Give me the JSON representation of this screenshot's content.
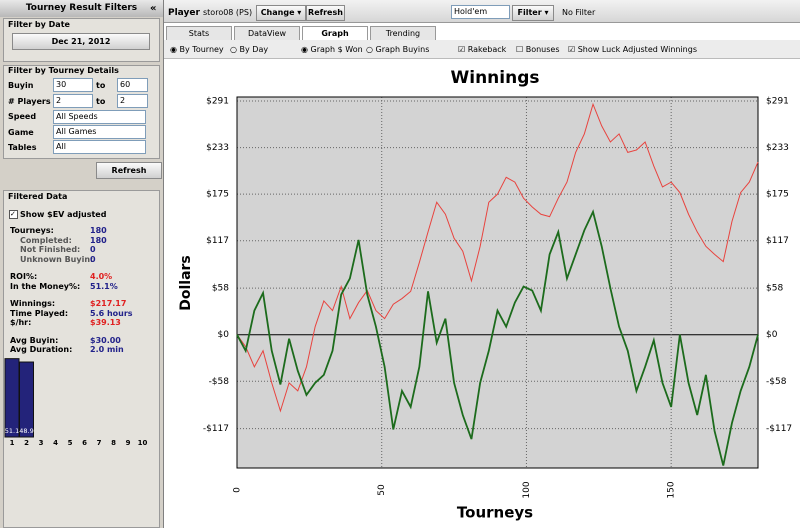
{
  "sidebar": {
    "title": "Tourney Result Filters",
    "collapse": "«",
    "date_section": {
      "title": "Filter by Date",
      "date": "Dec 21, 2012"
    },
    "details": {
      "title": "Filter by Tourney Details",
      "buyin_label": "Buyin",
      "buyin_min": "30",
      "to": "to",
      "buyin_max": "60",
      "players_label": "# Players",
      "players_min": "2",
      "players_max": "2",
      "speed_label": "Speed",
      "speed": "All Speeds",
      "game_label": "Game",
      "game": "All Games",
      "tables_label": "Tables",
      "tables": "All",
      "refresh": "Refresh"
    },
    "filtered": {
      "title": "Filtered Data",
      "ev_adjusted": "Show $EV adjusted",
      "stats": [
        {
          "label": "Tourneys:",
          "value": "180"
        },
        {
          "label": "Completed:",
          "value": "180"
        },
        {
          "label": "Not Finished:",
          "value": "0"
        },
        {
          "label": "Unknown Buyin:",
          "value": "0"
        },
        {
          "label": "ROI%:",
          "value": "4.0%"
        },
        {
          "label": "In the Money%:",
          "value": "51.1%"
        },
        {
          "label": "Winnings:",
          "value": "$217.17"
        },
        {
          "label": "Time Played:",
          "value": "5.6 hours"
        },
        {
          "label": "$/hr:",
          "value": "$39.13"
        },
        {
          "label": "Avg Buyin:",
          "value": "$30.00"
        },
        {
          "label": "Avg Duration:",
          "value": "2.0 min"
        }
      ]
    },
    "itm_chart": {
      "categories": [
        "1",
        "2",
        "3",
        "4",
        "5",
        "6",
        "7",
        "8",
        "9",
        "10"
      ],
      "values": [
        51.1,
        48.9,
        null,
        null,
        null,
        null,
        null,
        null,
        null,
        null
      ],
      "ylim": [
        0,
        60
      ],
      "color": "#23237a"
    }
  },
  "toolbar": {
    "player_label": "Player",
    "player": "storo08 (PS)",
    "change": "Change",
    "refresh": "Refresh",
    "game": "Hold'em",
    "filter": "Filter",
    "filter_status": "No Filter"
  },
  "tabs": {
    "items": [
      "Stats",
      "DataView",
      "Graph",
      "Trending"
    ],
    "active": 2
  },
  "options": {
    "by_tourney": "By Tourney",
    "by_day": "By Day",
    "graph_won": "Graph $ Won",
    "graph_buyins": "Graph Buyins",
    "rakeback": "Rakeback",
    "bonuses": "Bonuses",
    "luck_adjusted": "Show Luck Adjusted Winnings"
  },
  "chart_data": {
    "type": "line",
    "title": "Winnings",
    "x_label": "Tourneys",
    "y_label": "Dollars",
    "x": [
      0,
      3,
      6,
      9,
      12,
      15,
      18,
      21,
      24,
      27,
      30,
      33,
      36,
      39,
      42,
      45,
      48,
      51,
      54,
      57,
      60,
      63,
      66,
      69,
      72,
      75,
      78,
      81,
      84,
      87,
      90,
      93,
      96,
      99,
      102,
      105,
      108,
      111,
      114,
      117,
      120,
      123,
      126,
      129,
      132,
      135,
      138,
      141,
      144,
      147,
      150,
      153,
      156,
      159,
      162,
      165,
      168,
      171,
      174,
      177,
      180
    ],
    "xlim": [
      0,
      180
    ],
    "xticks": [
      0,
      50,
      100,
      150
    ],
    "ylim": [
      -166,
      296
    ],
    "yticks": [
      {
        "value": 291,
        "label": "$291"
      },
      {
        "value": 233,
        "label": "$233"
      },
      {
        "value": 175,
        "label": "$175"
      },
      {
        "value": 117,
        "label": "$117"
      },
      {
        "value": 58,
        "label": "$58"
      },
      {
        "value": 0,
        "label": "$0"
      },
      {
        "value": -58,
        "label": "-$58"
      },
      {
        "value": -117,
        "label": "-$117"
      }
    ],
    "grid": true,
    "series": [
      {
        "color": "#e8433e",
        "values": [
          0,
          -15,
          -40,
          -20,
          -60,
          -95,
          -60,
          -70,
          -40,
          10,
          42,
          30,
          60,
          20,
          40,
          55,
          30,
          20,
          38,
          45,
          54,
          90,
          128,
          165,
          150,
          120,
          104,
          67,
          110,
          165,
          175,
          196,
          190,
          170,
          159,
          150,
          147,
          170,
          190,
          227,
          250,
          287,
          260,
          240,
          250,
          227,
          230,
          240,
          210,
          184,
          190,
          177,
          150,
          128,
          110,
          100,
          91,
          141,
          177,
          190,
          215
        ]
      },
      {
        "color": "#1c6b1c",
        "values": [
          0,
          -20,
          30,
          52,
          -20,
          -62,
          -5,
          -45,
          -75,
          -60,
          -50,
          -20,
          50,
          70,
          118,
          50,
          10,
          -40,
          -118,
          -70,
          -90,
          -40,
          54,
          -10,
          20,
          -60,
          -100,
          -130,
          -60,
          -20,
          30,
          10,
          40,
          60,
          55,
          30,
          100,
          128,
          70,
          100,
          130,
          153,
          110,
          58,
          10,
          -20,
          -70,
          -40,
          -7,
          -60,
          -90,
          0,
          -60,
          -100,
          -50,
          -120,
          -163,
          -110,
          -70,
          -40,
          0
        ]
      }
    ]
  }
}
